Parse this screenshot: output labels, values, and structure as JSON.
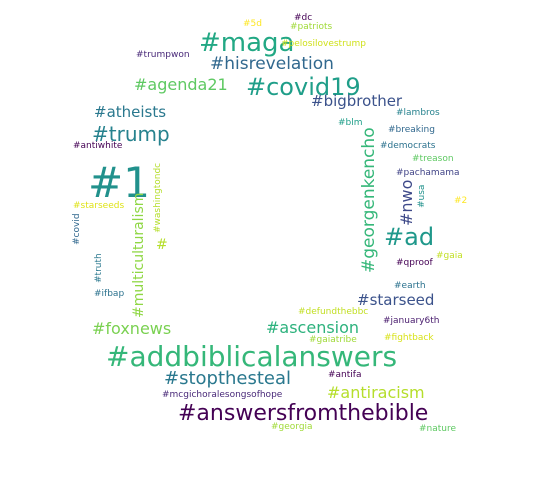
{
  "words": [
    {
      "text": "#1",
      "color": "#21918c"
    },
    {
      "text": "#addbiblicalanswers",
      "color": "#35b779"
    },
    {
      "text": "#answersfromthebible",
      "color": "#440154"
    },
    {
      "text": "#maga",
      "color": "#22a884"
    },
    {
      "text": "#covid19",
      "color": "#1f9e89"
    },
    {
      "text": "#ad",
      "color": "#1f988b"
    },
    {
      "text": "#stopthesteal",
      "color": "#2a788e"
    },
    {
      "text": "#trump",
      "color": "#26828e"
    },
    {
      "text": "#hisrevelation",
      "color": "#31688e"
    },
    {
      "text": "#agenda21",
      "color": "#5ec962"
    },
    {
      "text": "#georgenkencho",
      "color": "#35b779"
    },
    {
      "text": "#antiracism",
      "color": "#b5de2b"
    },
    {
      "text": "#ascension",
      "color": "#2db27d"
    },
    {
      "text": "#foxnews",
      "color": "#7ad151"
    },
    {
      "text": "#bigbrother",
      "color": "#3b528b"
    },
    {
      "text": "#atheists",
      "color": "#2a788e"
    },
    {
      "text": "#multiculturalism",
      "color": "#8fd744"
    },
    {
      "text": "#nwo",
      "color": "#3e4989"
    },
    {
      "text": "#starseed",
      "color": "#3b528b"
    },
    {
      "text": "#",
      "color": "#b5de2b"
    },
    {
      "text": "#5d",
      "color": "#fde725"
    },
    {
      "text": "#dc",
      "color": "#440154"
    },
    {
      "text": "#patriots",
      "color": "#a0da39"
    },
    {
      "text": "#pelosilovestrump",
      "color": "#d0e11c"
    },
    {
      "text": "#trumpwon",
      "color": "#482878"
    },
    {
      "text": "#lambros",
      "color": "#26828e"
    },
    {
      "text": "#blm",
      "color": "#1f9e89"
    },
    {
      "text": "#breaking",
      "color": "#31688e"
    },
    {
      "text": "#democrats",
      "color": "#2c728e"
    },
    {
      "text": "#antiwhite",
      "color": "#440154"
    },
    {
      "text": "#treason",
      "color": "#5ec962"
    },
    {
      "text": "#pachamama",
      "color": "#414487"
    },
    {
      "text": "#usa",
      "color": "#21918c"
    },
    {
      "text": "#2",
      "color": "#fde725"
    },
    {
      "text": "#starseeds",
      "color": "#dfe318"
    },
    {
      "text": "#washingtondc",
      "color": "#b5de2b"
    },
    {
      "text": "#covid",
      "color": "#31688e"
    },
    {
      "text": "#truth",
      "color": "#2a788e"
    },
    {
      "text": "#gaia",
      "color": "#c2df23"
    },
    {
      "text": "#qproof",
      "color": "#440154"
    },
    {
      "text": "#earth",
      "color": "#2c728e"
    },
    {
      "text": "#ifbap",
      "color": "#2c728e"
    },
    {
      "text": "#defundthebbc",
      "color": "#c2df23"
    },
    {
      "text": "#january6th",
      "color": "#481b6d"
    },
    {
      "text": "#gaiatribe",
      "color": "#a0da39"
    },
    {
      "text": "#fightback",
      "color": "#d8e219"
    },
    {
      "text": "#antifa",
      "color": "#440154"
    },
    {
      "text": "#mcgichoralesongsofhope",
      "color": "#482878"
    },
    {
      "text": "#georgia",
      "color": "#a0da39"
    },
    {
      "text": "#nature",
      "color": "#5ec962"
    }
  ]
}
